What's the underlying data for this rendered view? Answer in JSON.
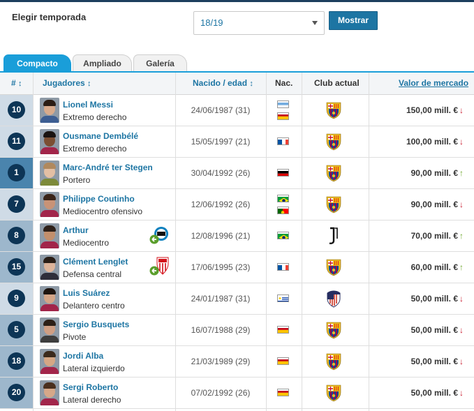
{
  "filter": {
    "season_label": "Elegir temporada",
    "season_value": "18/19",
    "show_button": "Mostrar"
  },
  "tabs": [
    {
      "label": "Compacto",
      "active": true
    },
    {
      "label": "Ampliado",
      "active": false
    },
    {
      "label": "Galería",
      "active": false
    }
  ],
  "headers": {
    "number": "#",
    "players": "Jugadores",
    "born": "Nacido / edad",
    "nat": "Nac.",
    "club": "Club actual",
    "value": "Valor de mercado"
  },
  "colors": {
    "accent": "#1d75a3",
    "tab_active": "#1a9ed9",
    "number_badge": "#0d3556",
    "trend_down": "#c8172b",
    "trend_up": "#6da62b"
  },
  "players": [
    {
      "number": "10",
      "name": "Lionel Messi",
      "role": "Extremo derecho",
      "dob": "24/06/1987 (31)",
      "flags": [
        "argentina-flag",
        "spain-flag"
      ],
      "club": "fc-barcelona-crest",
      "value": "150,00 mill. €",
      "trend": "down",
      "trend_icon": "↓",
      "transfer": ""
    },
    {
      "number": "11",
      "name": "Ousmane Dembélé",
      "role": "Extremo derecho",
      "dob": "15/05/1997 (21)",
      "flags": [
        "france-flag"
      ],
      "club": "fc-barcelona-crest",
      "value": "100,00 mill. €",
      "trend": "down",
      "trend_icon": "↓",
      "transfer": ""
    },
    {
      "number": "1",
      "name": "Marc-André ter Stegen",
      "role": "Portero",
      "dob": "30/04/1992 (26)",
      "flags": [
        "germany-flag"
      ],
      "club": "fc-barcelona-crest",
      "value": "90,00 mill. €",
      "trend": "up",
      "trend_icon": "↑",
      "transfer": ""
    },
    {
      "number": "7",
      "name": "Philippe Coutinho",
      "role": "Mediocentro ofensivo",
      "dob": "12/06/1992 (26)",
      "flags": [
        "brazil-flag",
        "portugal-flag"
      ],
      "club": "fc-barcelona-crest",
      "value": "90,00 mill. €",
      "trend": "down",
      "trend_icon": "↓",
      "transfer": ""
    },
    {
      "number": "8",
      "name": "Arthur",
      "role": "Mediocentro",
      "dob": "12/08/1996 (21)",
      "flags": [
        "brazil-flag"
      ],
      "club": "juventus-crest",
      "value": "70,00 mill. €",
      "trend": "up",
      "trend_icon": "↑",
      "transfer": "gremio-crest"
    },
    {
      "number": "15",
      "name": "Clément Lenglet",
      "role": "Defensa central",
      "dob": "17/06/1995 (23)",
      "flags": [
        "france-flag"
      ],
      "club": "fc-barcelona-crest",
      "value": "60,00 mill. €",
      "trend": "up",
      "trend_icon": "↑",
      "transfer": "sevilla-crest"
    },
    {
      "number": "9",
      "name": "Luis Suárez",
      "role": "Delantero centro",
      "dob": "24/01/1987 (31)",
      "flags": [
        "uruguay-flag"
      ],
      "club": "atletico-madrid-crest",
      "value": "50,00 mill. €",
      "trend": "down",
      "trend_icon": "↓",
      "transfer": ""
    },
    {
      "number": "5",
      "name": "Sergio Busquets",
      "role": "Pivote",
      "dob": "16/07/1988 (29)",
      "flags": [
        "spain-flag"
      ],
      "club": "fc-barcelona-crest",
      "value": "50,00 mill. €",
      "trend": "down",
      "trend_icon": "↓",
      "transfer": ""
    },
    {
      "number": "18",
      "name": "Jordi Alba",
      "role": "Lateral izquierdo",
      "dob": "21/03/1989 (29)",
      "flags": [
        "spain-flag"
      ],
      "club": "fc-barcelona-crest",
      "value": "50,00 mill. €",
      "trend": "down",
      "trend_icon": "↓",
      "transfer": ""
    },
    {
      "number": "20",
      "name": "Sergi Roberto",
      "role": "Lateral derecho",
      "dob": "07/02/1992 (26)",
      "flags": [
        "spain-flag"
      ],
      "club": "fc-barcelona-crest",
      "value": "50,00 mill. €",
      "trend": "down",
      "trend_icon": "↓",
      "transfer": ""
    }
  ]
}
